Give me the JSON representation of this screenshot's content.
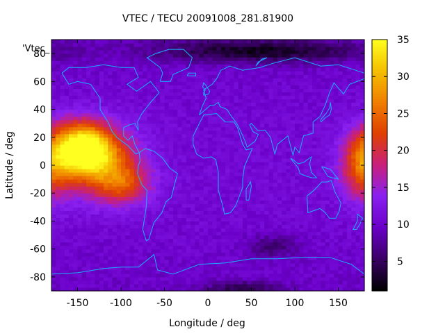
{
  "chart_data": {
    "type": "heatmap",
    "title": "VTEC / TECU 20091008_281.81900",
    "xlabel": "Longitude / deg",
    "ylabel": "Latitude / deg",
    "key_label": "'Vtec_",
    "xlim": [
      -180,
      180
    ],
    "ylim": [
      -90,
      90
    ],
    "x_ticks": [
      -150,
      -100,
      -50,
      0,
      50,
      100,
      150
    ],
    "y_ticks": [
      -80,
      -60,
      -40,
      -20,
      0,
      20,
      40,
      60,
      80
    ],
    "colorbar": {
      "range": [
        1,
        35
      ],
      "ticks": [
        5,
        10,
        15,
        20,
        25,
        30,
        35
      ],
      "colormap": [
        "#000000",
        "#3a0066",
        "#6a00c8",
        "#8a20f0",
        "#c8207a",
        "#e04000",
        "#f08000",
        "#f5c000",
        "#ffff20"
      ]
    },
    "grid_resolution_deg": {
      "dlon": 5,
      "dlat": 2.5
    },
    "features": {
      "background_level": 9.5,
      "enhancements": [
        {
          "lon": -145,
          "lat": 12,
          "value": 34,
          "width_lon": 32,
          "width_lat": 18
        },
        {
          "lon": -120,
          "lat": 2,
          "value": 22,
          "width_lon": 42,
          "width_lat": 24
        },
        {
          "lon": -95,
          "lat": -14,
          "value": 18,
          "width_lon": 30,
          "width_lat": 14
        },
        {
          "lon": 178,
          "lat": 0,
          "value": 22,
          "width_lon": 25,
          "width_lat": 24
        }
      ],
      "depletions": [
        {
          "lon": 60,
          "lat": 82,
          "value": 2,
          "width_lon": 120,
          "width_lat": 8
        },
        {
          "lon": 75,
          "lat": -58,
          "value": 5,
          "width_lon": 30,
          "width_lat": 8
        },
        {
          "lon": 40,
          "lat": -88,
          "value": 4,
          "width_lon": 40,
          "width_lat": 5
        }
      ]
    },
    "coastline_color": "#1ab0ff"
  }
}
